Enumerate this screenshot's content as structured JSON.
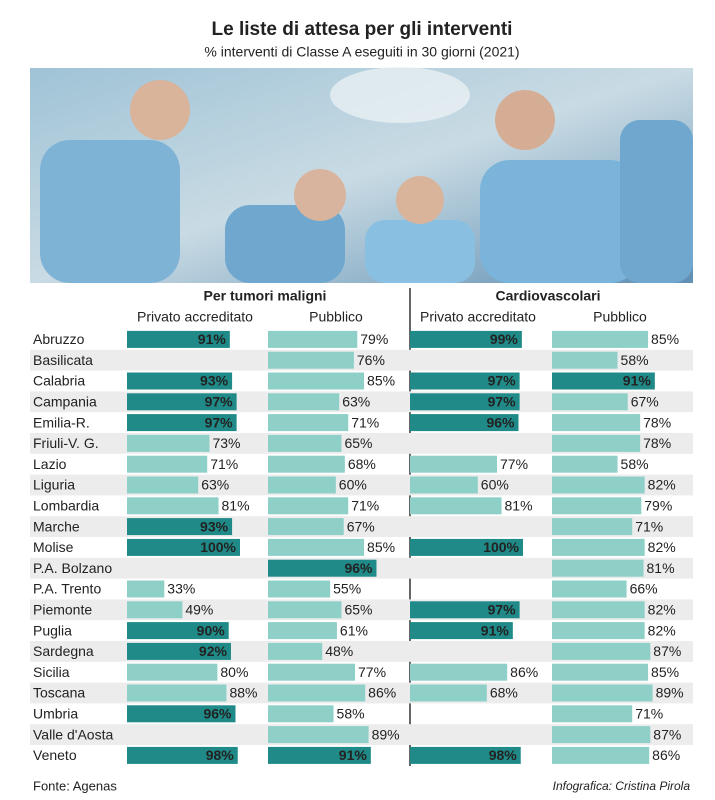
{
  "chart_data": {
    "type": "bar",
    "title": "Le liste di attesa per gli interventi",
    "subtitle": "% interventi di Classe A eseguiti in 30 giorni (2021)",
    "source": "Fonte: Agenas",
    "credit": "Infografica: Cristina Pirola",
    "xlim": [
      0,
      100
    ],
    "categories": [
      "Abruzzo",
      "Basilicata",
      "Calabria",
      "Campania",
      "Emilia-R.",
      "Friuli-V. G.",
      "Lazio",
      "Liguria",
      "Lombardia",
      "Marche",
      "Molise",
      "P.A. Bolzano",
      "P.A. Trento",
      "Piemonte",
      "Puglia",
      "Sardegna",
      "Sicilia",
      "Toscana",
      "Umbria",
      "Valle d'Aosta",
      "Veneto"
    ],
    "groups": [
      {
        "name": "Per tumori maligni",
        "series": [
          {
            "name": "Privato accreditato",
            "values": [
              91,
              null,
              93,
              97,
              97,
              73,
              71,
              63,
              81,
              93,
              100,
              null,
              33,
              49,
              90,
              92,
              80,
              88,
              96,
              null,
              98
            ],
            "value_labels": [
              "91%",
              null,
              "93%",
              "97%",
              "97%",
              "73%",
              "71%",
              "63%",
              "81%",
              "93%",
              "100%",
              null,
              "33%",
              "49%",
              "90%",
              "92%",
              "80%",
              "88%",
              "96%",
              null,
              "98%"
            ],
            "colors": [
              "#1f8a87",
              null,
              "#1f8a87",
              "#1f8a87",
              "#1f8a87",
              "#8ecfc7",
              "#8ecfc7",
              "#8ecfc7",
              "#8ecfc7",
              "#1f8a87",
              "#1f8a87",
              null,
              "#8ecfc7",
              "#8ecfc7",
              "#1f8a87",
              "#1f8a87",
              "#8ecfc7",
              "#8ecfc7",
              "#1f8a87",
              null,
              "#1f8a87"
            ]
          },
          {
            "name": "Pubblico",
            "values": [
              79,
              76,
              85,
              63,
              71,
              65,
              68,
              60,
              71,
              67,
              85,
              96,
              55,
              65,
              61,
              48,
              77,
              86,
              58,
              89,
              91
            ],
            "value_labels": [
              "79%",
              "76%",
              "85%",
              "63%",
              "71%",
              "65%",
              "68%",
              "60%",
              "71%",
              "67%",
              "85%",
              "96%",
              "55%",
              "65%",
              "61%",
              "48%",
              "77%",
              "86%",
              "58%",
              "89%",
              "91%"
            ],
            "colors": [
              "#8ecfc7",
              "#8ecfc7",
              "#8ecfc7",
              "#8ecfc7",
              "#8ecfc7",
              "#8ecfc7",
              "#8ecfc7",
              "#8ecfc7",
              "#8ecfc7",
              "#8ecfc7",
              "#8ecfc7",
              "#1f8a87",
              "#8ecfc7",
              "#8ecfc7",
              "#8ecfc7",
              "#8ecfc7",
              "#8ecfc7",
              "#8ecfc7",
              "#8ecfc7",
              "#8ecfc7",
              "#1f8a87"
            ]
          }
        ]
      },
      {
        "name": "Cardiovascolari",
        "series": [
          {
            "name": "Privato accreditato",
            "values": [
              99,
              null,
              97,
              97,
              96,
              null,
              77,
              60,
              81,
              null,
              100,
              null,
              null,
              97,
              91,
              null,
              86,
              68,
              null,
              null,
              98
            ],
            "value_labels": [
              "99%",
              null,
              "97%",
              "97%",
              "96%",
              null,
              "77%",
              "60%",
              "81%",
              null,
              "100%",
              null,
              null,
              "97%",
              "91%",
              null,
              "86%",
              "68%",
              null,
              null,
              "98%"
            ],
            "colors": [
              "#1f8a87",
              null,
              "#1f8a87",
              "#1f8a87",
              "#1f8a87",
              null,
              "#8ecfc7",
              "#8ecfc7",
              "#8ecfc7",
              null,
              "#1f8a87",
              null,
              null,
              "#1f8a87",
              "#1f8a87",
              null,
              "#8ecfc7",
              "#8ecfc7",
              null,
              null,
              "#1f8a87"
            ]
          },
          {
            "name": "Pubblico",
            "values": [
              85,
              58,
              91,
              67,
              78,
              78,
              58,
              82,
              79,
              71,
              82,
              81,
              66,
              82,
              82,
              87,
              85,
              89,
              71,
              87,
              86
            ],
            "value_labels": [
              "85%",
              "58%",
              "91%",
              "67%",
              "78%",
              "78%",
              "58%",
              "82%",
              "79%",
              "71%",
              "82%",
              "81%",
              "66%",
              "82%",
              "82%",
              "87%",
              "85%",
              "89%",
              "71%",
              "87%",
              "86%"
            ],
            "colors": [
              "#8ecfc7",
              "#8ecfc7",
              "#1f8a87",
              "#8ecfc7",
              "#8ecfc7",
              "#8ecfc7",
              "#8ecfc7",
              "#8ecfc7",
              "#8ecfc7",
              "#8ecfc7",
              "#8ecfc7",
              "#8ecfc7",
              "#8ecfc7",
              "#8ecfc7",
              "#8ecfc7",
              "#8ecfc7",
              "#8ecfc7",
              "#8ecfc7",
              "#8ecfc7",
              "#8ecfc7",
              "#8ecfc7"
            ]
          }
        ]
      }
    ]
  }
}
